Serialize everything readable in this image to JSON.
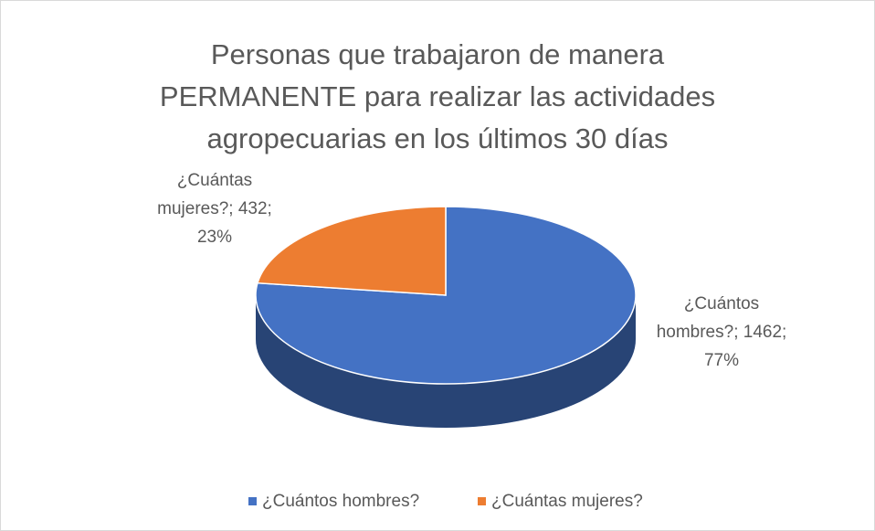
{
  "chart_data": {
    "type": "pie",
    "title": [
      "Personas que trabajaron de manera",
      "PERMANENTE para realizar las actividades",
      "agropecuarias en los últimos 30 días"
    ],
    "categories": [
      "¿Cuántos hombres?",
      "¿Cuántas mujeres?"
    ],
    "values": [
      1462,
      432
    ],
    "colors": [
      "#4472c4",
      "#ed7d31"
    ],
    "data_labels": [
      [
        "¿Cuántos",
        "hombres?; 1462;",
        "77%"
      ],
      [
        "¿Cuántas",
        "mujeres?; 432;",
        "23%"
      ]
    ],
    "legend": "bottom"
  }
}
